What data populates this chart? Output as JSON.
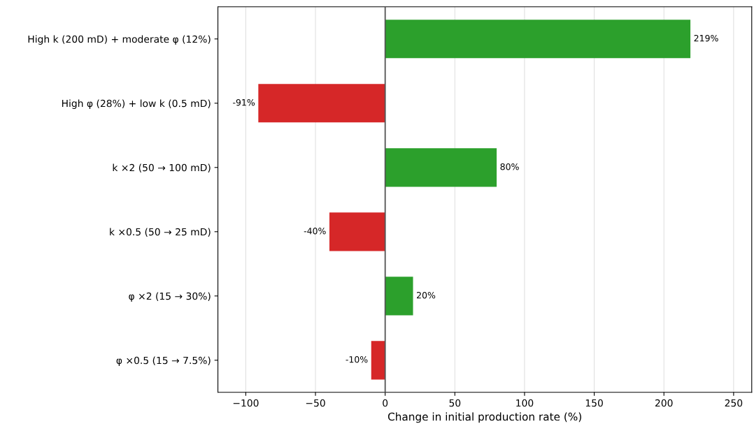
{
  "chart_data": {
    "type": "bar",
    "orientation": "horizontal",
    "xlabel": "Change in initial production rate (%)",
    "categories": [
      "High k (200 mD) + moderate φ (12%)",
      "High φ (28%) + low k (0.5 mD)",
      "k ×2 (50 → 100 mD)",
      "k ×0.5 (50 → 25 mD)",
      "φ ×2 (15 → 30%)",
      "φ ×0.5 (15 → 7.5%)"
    ],
    "values": [
      219,
      -91,
      80,
      -40,
      20,
      -10
    ],
    "colors": [
      "#2ca02c",
      "#d62728",
      "#2ca02c",
      "#d62728",
      "#2ca02c",
      "#d62728"
    ],
    "value_labels": [
      "219%",
      "-91%",
      "80%",
      "-40%",
      "20%",
      "-10%"
    ],
    "xlim": [
      -120,
      263
    ],
    "xticks": [
      {
        "value": -100,
        "label": "−100"
      },
      {
        "value": -50,
        "label": "−50"
      },
      0,
      50,
      100,
      150,
      200,
      250
    ],
    "ref_lines": [
      {
        "axis": "x",
        "value": 0,
        "color": "#555555",
        "line_style": "solid"
      }
    ],
    "grid": "x"
  }
}
